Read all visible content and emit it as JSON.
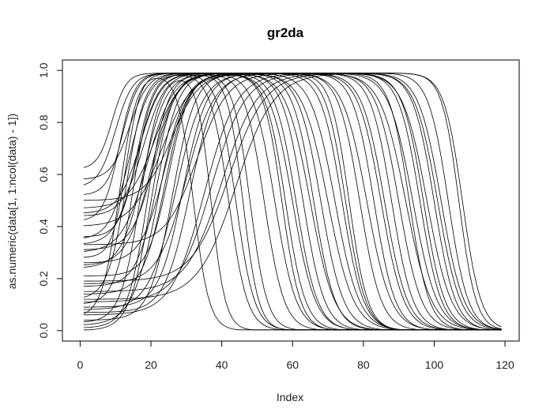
{
  "chart_data": {
    "type": "line",
    "title": "gr2da",
    "xlabel": "Index",
    "ylabel": "as.numeric(data[1, 1:ncol(data) - 1])",
    "xlim": [
      -5,
      124
    ],
    "ylim": [
      -0.04,
      1.04
    ],
    "xticks": [
      0,
      20,
      40,
      60,
      80,
      100,
      120
    ],
    "yticks": [
      0.0,
      0.2,
      0.4,
      0.6,
      0.8,
      1.0
    ],
    "x_range": [
      1,
      119
    ],
    "grid": false,
    "legend": "none",
    "line_color": "#000000",
    "series_params": [
      {
        "s": 0.12,
        "r": 13,
        "rk": 2.6,
        "f": 70,
        "fk": 3.6,
        "top": 0.99
      },
      {
        "s": 0.05,
        "r": 11,
        "rk": 2.4,
        "f": 32,
        "fk": 2.2,
        "top": 0.99
      },
      {
        "s": 0.33,
        "r": 16,
        "rk": 3.0,
        "f": 58,
        "fk": 2.8,
        "top": 0.99
      },
      {
        "s": 0.25,
        "r": 20,
        "rk": 3.4,
        "f": 90,
        "fk": 3.2,
        "top": 0.99
      },
      {
        "s": 0.02,
        "r": 22,
        "rk": 3.6,
        "f": 63,
        "fk": 3.0,
        "top": 0.99
      },
      {
        "s": 0.52,
        "r": 12,
        "rk": 2.2,
        "f": 81,
        "fk": 3.4,
        "top": 0.99
      },
      {
        "s": 0.14,
        "r": 24,
        "rk": 3.2,
        "f": 102,
        "fk": 3.2,
        "top": 0.99
      },
      {
        "s": 0.35,
        "r": 14,
        "rk": 2.8,
        "f": 42,
        "fk": 2.6,
        "top": 0.99
      },
      {
        "s": 0.08,
        "r": 27,
        "rk": 3.8,
        "f": 96,
        "fk": 3.0,
        "top": 0.99
      },
      {
        "s": 0.44,
        "r": 18,
        "rk": 3.0,
        "f": 75,
        "fk": 2.8,
        "top": 0.99
      },
      {
        "s": 0.18,
        "r": 30,
        "rk": 4.0,
        "f": 85,
        "fk": 3.2,
        "top": 0.99
      },
      {
        "s": 0.06,
        "r": 35,
        "rk": 4.6,
        "f": 98,
        "fk": 3.4,
        "top": 0.99
      },
      {
        "s": 0.55,
        "r": 10,
        "rk": 2.4,
        "f": 55,
        "fk": 3.0,
        "top": 0.99
      },
      {
        "s": 0.3,
        "r": 19,
        "rk": 3.6,
        "f": 107,
        "fk": 2.4,
        "top": 0.99
      },
      {
        "s": 0.1,
        "r": 15,
        "rk": 2.6,
        "f": 48,
        "fk": 2.4,
        "top": 0.99
      },
      {
        "s": 0.4,
        "r": 23,
        "rk": 4.2,
        "f": 66,
        "fk": 3.0,
        "top": 0.99
      },
      {
        "s": 0.62,
        "r": 9,
        "rk": 2.0,
        "f": 60,
        "fk": 3.2,
        "top": 0.99
      },
      {
        "s": 0.21,
        "r": 25,
        "rk": 3.0,
        "f": 92,
        "fk": 3.6,
        "top": 0.99
      },
      {
        "s": 0.03,
        "r": 17,
        "rk": 2.8,
        "f": 37,
        "fk": 2.0,
        "top": 0.99
      },
      {
        "s": 0.47,
        "r": 21,
        "rk": 3.6,
        "f": 79,
        "fk": 3.0,
        "top": 0.99
      },
      {
        "s": 0.15,
        "r": 40,
        "rk": 5.0,
        "f": 104,
        "fk": 2.8,
        "top": 0.99
      },
      {
        "s": 0.28,
        "r": 13,
        "rk": 2.0,
        "f": 72,
        "fk": 3.4,
        "top": 0.99
      },
      {
        "s": 0.09,
        "r": 29,
        "rk": 3.4,
        "f": 88,
        "fk": 3.0,
        "top": 0.99
      },
      {
        "s": 0.36,
        "r": 16,
        "rk": 2.4,
        "f": 44,
        "fk": 2.6,
        "top": 0.99
      },
      {
        "s": 0.0,
        "r": 20,
        "rk": 3.0,
        "f": 52,
        "fk": 2.8,
        "top": 0.99
      },
      {
        "s": 0.5,
        "r": 26,
        "rk": 3.8,
        "f": 68,
        "fk": 3.2,
        "top": 0.99
      },
      {
        "s": 0.12,
        "r": 44,
        "rk": 5.4,
        "f": 100,
        "fk": 3.0,
        "top": 0.99
      },
      {
        "s": 0.24,
        "r": 18,
        "rk": 3.2,
        "f": 76,
        "fk": 2.6,
        "top": 0.99
      },
      {
        "s": 0.07,
        "r": 31,
        "rk": 3.6,
        "f": 94,
        "fk": 3.4,
        "top": 0.99
      },
      {
        "s": 0.42,
        "r": 11,
        "rk": 2.2,
        "f": 61,
        "fk": 3.0,
        "top": 0.99
      },
      {
        "s": 0.17,
        "r": 22,
        "rk": 3.0,
        "f": 83,
        "fk": 3.0,
        "top": 0.99
      },
      {
        "s": 0.33,
        "r": 33,
        "rk": 4.4,
        "f": 108,
        "fk": 2.6,
        "top": 0.99
      },
      {
        "s": 0.04,
        "r": 26,
        "rk": 3.2,
        "f": 57,
        "fk": 2.6,
        "top": 0.99
      },
      {
        "s": 0.58,
        "r": 14,
        "rk": 2.6,
        "f": 86,
        "fk": 3.2,
        "top": 0.99
      },
      {
        "s": 0.11,
        "r": 37,
        "rk": 4.8,
        "f": 97,
        "fk": 3.0,
        "top": 0.99
      },
      {
        "s": 0.26,
        "r": 24,
        "rk": 3.4,
        "f": 65,
        "fk": 3.4,
        "top": 0.99
      },
      {
        "s": 0.01,
        "r": 19,
        "rk": 2.8,
        "f": 46,
        "fk": 2.2,
        "top": 0.99
      },
      {
        "s": 0.45,
        "r": 17,
        "rk": 3.0,
        "f": 93,
        "fk": 2.8,
        "top": 0.99
      },
      {
        "s": 0.19,
        "r": 42,
        "rk": 5.2,
        "f": 101,
        "fk": 3.2,
        "top": 0.99
      },
      {
        "s": 0.31,
        "r": 21,
        "rk": 3.2,
        "f": 74,
        "fk": 3.0,
        "top": 0.99
      }
    ]
  }
}
